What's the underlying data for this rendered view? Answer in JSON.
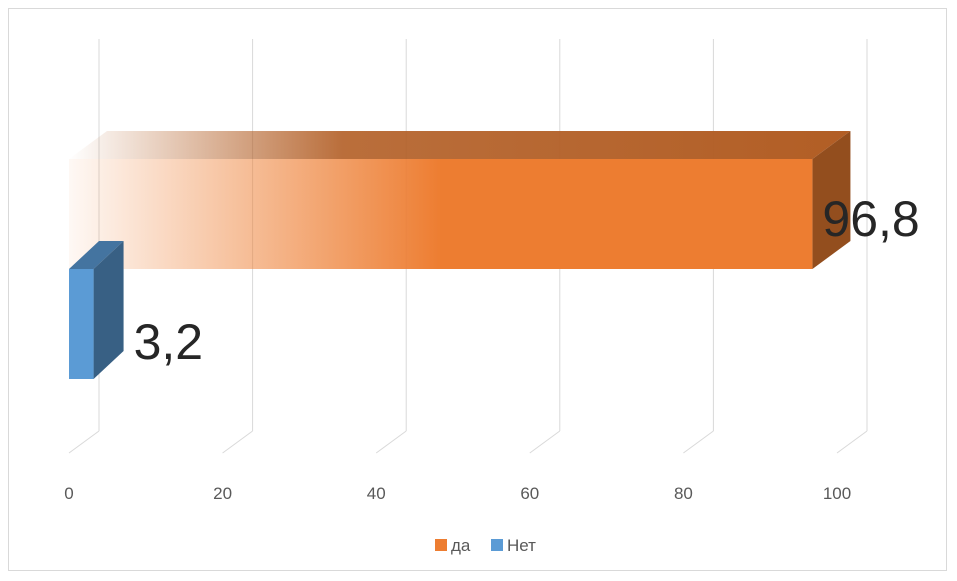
{
  "chart_data": {
    "type": "bar",
    "orientation": "horizontal",
    "style": "3d",
    "title": "",
    "xlabel": "",
    "ylabel": "",
    "xlim": [
      0,
      100
    ],
    "x_ticks": [
      "0",
      "20",
      "40",
      "60",
      "80",
      "100"
    ],
    "grid": true,
    "legend_position": "bottom",
    "series": [
      {
        "name": "да",
        "value": 96.8,
        "label": "96,8",
        "color": "#ED7D31"
      },
      {
        "name": "Нет",
        "value": 3.2,
        "label": "3,2",
        "color": "#5B9BD5"
      }
    ]
  }
}
